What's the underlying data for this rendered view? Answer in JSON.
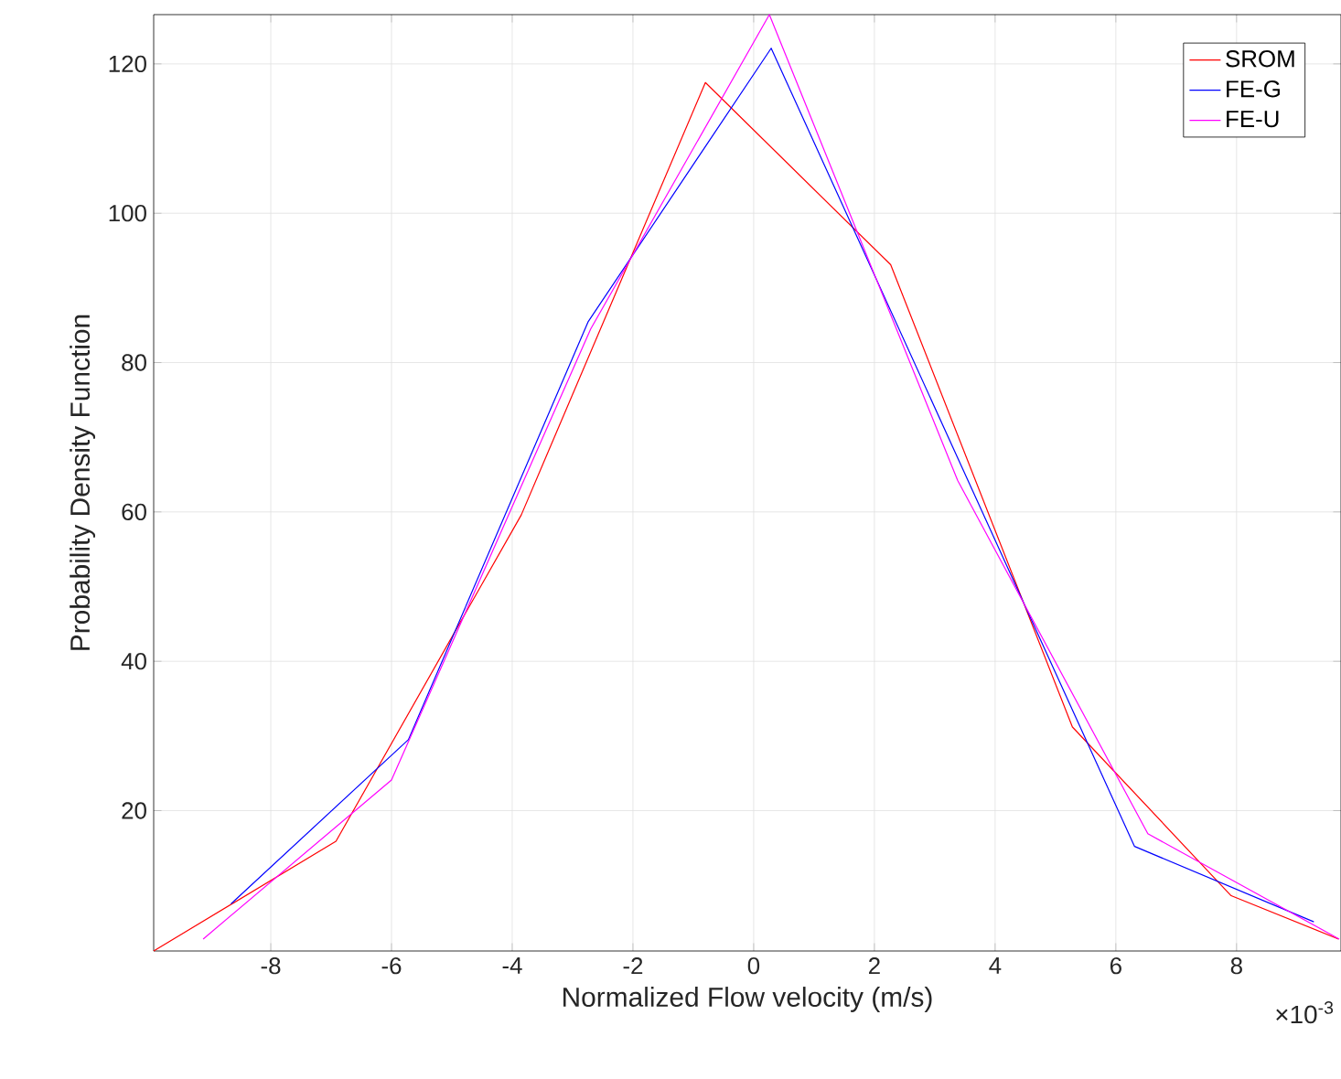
{
  "chart_data": {
    "type": "line",
    "xlabel": "Normalized Flow velocity (m/s)",
    "ylabel": "Probability Density Function",
    "annotations": [
      "×10$^{-3}$"
    ],
    "xlim": [
      -9.94,
      9.73
    ],
    "ylim": [
      1.2,
      126.6
    ],
    "xticks": [
      -8,
      -6,
      -4,
      -2,
      0,
      2,
      4,
      6,
      8
    ],
    "yticks": [
      20,
      40,
      60,
      80,
      100,
      120
    ],
    "grid": true,
    "legend": "top right",
    "series": [
      {
        "name": "SROM",
        "color": "#ff0000",
        "x": [
          -9.94,
          -6.92,
          -3.85,
          -0.8,
          2.27,
          5.28,
          7.91,
          9.69
        ],
        "values": [
          1.2,
          15.9,
          59.6,
          117.5,
          93.1,
          31.2,
          8.6,
          2.8
        ]
      },
      {
        "name": "FE-G",
        "color": "#0000ff",
        "x": [
          -8.66,
          -5.72,
          -2.74,
          0.29,
          6.31,
          9.28
        ],
        "values": [
          7.5,
          29.5,
          85.5,
          122.1,
          15.2,
          5.1
        ]
      },
      {
        "name": "FE-U",
        "color": "#ff00ff",
        "x": [
          -9.12,
          -6.0,
          -2.7,
          0.26,
          3.38,
          6.53,
          9.7
        ],
        "values": [
          2.8,
          24.1,
          84.5,
          126.6,
          64.2,
          16.9,
          2.8
        ]
      }
    ]
  }
}
